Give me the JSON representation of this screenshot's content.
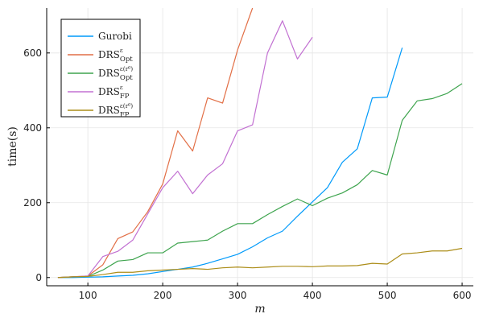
{
  "chart_data": {
    "type": "line",
    "title": "",
    "xlabel": "m",
    "ylabel": "time(s)",
    "xlim": [
      45,
      615
    ],
    "ylim": [
      -22,
      720
    ],
    "x_ticks": [
      100,
      200,
      300,
      400,
      500,
      600
    ],
    "y_ticks": [
      0,
      200,
      400,
      600
    ],
    "grid": true,
    "legend_position": "top-left",
    "series": [
      {
        "name": "Gurobi",
        "label_base": "Gurobi",
        "label_sub": "",
        "label_sup": "",
        "color": "#009AFA",
        "x": [
          60,
          80,
          100,
          120,
          140,
          160,
          180,
          200,
          220,
          240,
          260,
          280,
          300,
          320,
          340,
          360,
          380,
          400,
          420,
          440,
          460,
          480,
          500,
          520
        ],
        "y": [
          0,
          0,
          1,
          2,
          4,
          6,
          10,
          16,
          22,
          28,
          38,
          50,
          62,
          82,
          106,
          124,
          164,
          202,
          240,
          308,
          344,
          480,
          482,
          614
        ]
      },
      {
        "name": "DRS Opt ε",
        "label_base": "DRS",
        "label_sub": "Opt",
        "label_sup": "ε",
        "color": "#E26F46",
        "x": [
          60,
          80,
          100,
          120,
          140,
          160,
          180,
          200,
          220,
          240,
          260,
          280,
          300,
          320
        ],
        "y": [
          0,
          2,
          4,
          34,
          104,
          122,
          176,
          250,
          392,
          338,
          480,
          466,
          608,
          720
        ]
      },
      {
        "name": "DRS Opt ε(r0)",
        "label_base": "DRS",
        "label_sub": "Opt",
        "label_sup": "ε(r⁰)",
        "color": "#3EA44E",
        "x": [
          60,
          80,
          100,
          120,
          140,
          160,
          180,
          200,
          220,
          240,
          260,
          280,
          300,
          320,
          340,
          360,
          380,
          400,
          420,
          440,
          460,
          480,
          500,
          520,
          540,
          560,
          580,
          600
        ],
        "y": [
          0,
          2,
          3,
          20,
          44,
          48,
          66,
          66,
          92,
          96,
          100,
          124,
          144,
          144,
          168,
          190,
          210,
          192,
          212,
          226,
          248,
          286,
          274,
          420,
          472,
          478,
          492,
          518
        ]
      },
      {
        "name": "DRS FP ε",
        "label_base": "DRS",
        "label_sub": "FP",
        "label_sup": "ε",
        "color": "#C271D2",
        "x": [
          60,
          80,
          100,
          120,
          140,
          160,
          180,
          200,
          220,
          240,
          260,
          280,
          300,
          320,
          340,
          360,
          380,
          400
        ],
        "y": [
          0,
          2,
          4,
          56,
          70,
          100,
          170,
          240,
          284,
          224,
          274,
          304,
          392,
          408,
          600,
          686,
          584,
          642
        ]
      },
      {
        "name": "DRS FP ε(r0)",
        "label_base": "DRS",
        "label_sub": "FP",
        "label_sup": "ε(r⁰)",
        "color": "#AC8D18",
        "x": [
          60,
          80,
          100,
          120,
          140,
          160,
          180,
          200,
          220,
          240,
          260,
          280,
          300,
          320,
          340,
          360,
          380,
          400,
          420,
          440,
          460,
          480,
          500,
          520,
          540,
          560,
          580,
          600
        ],
        "y": [
          0,
          2,
          3,
          8,
          14,
          14,
          18,
          20,
          22,
          24,
          22,
          26,
          28,
          26,
          28,
          30,
          30,
          29,
          31,
          31,
          32,
          38,
          36,
          63,
          66,
          71,
          71,
          78
        ]
      }
    ]
  }
}
